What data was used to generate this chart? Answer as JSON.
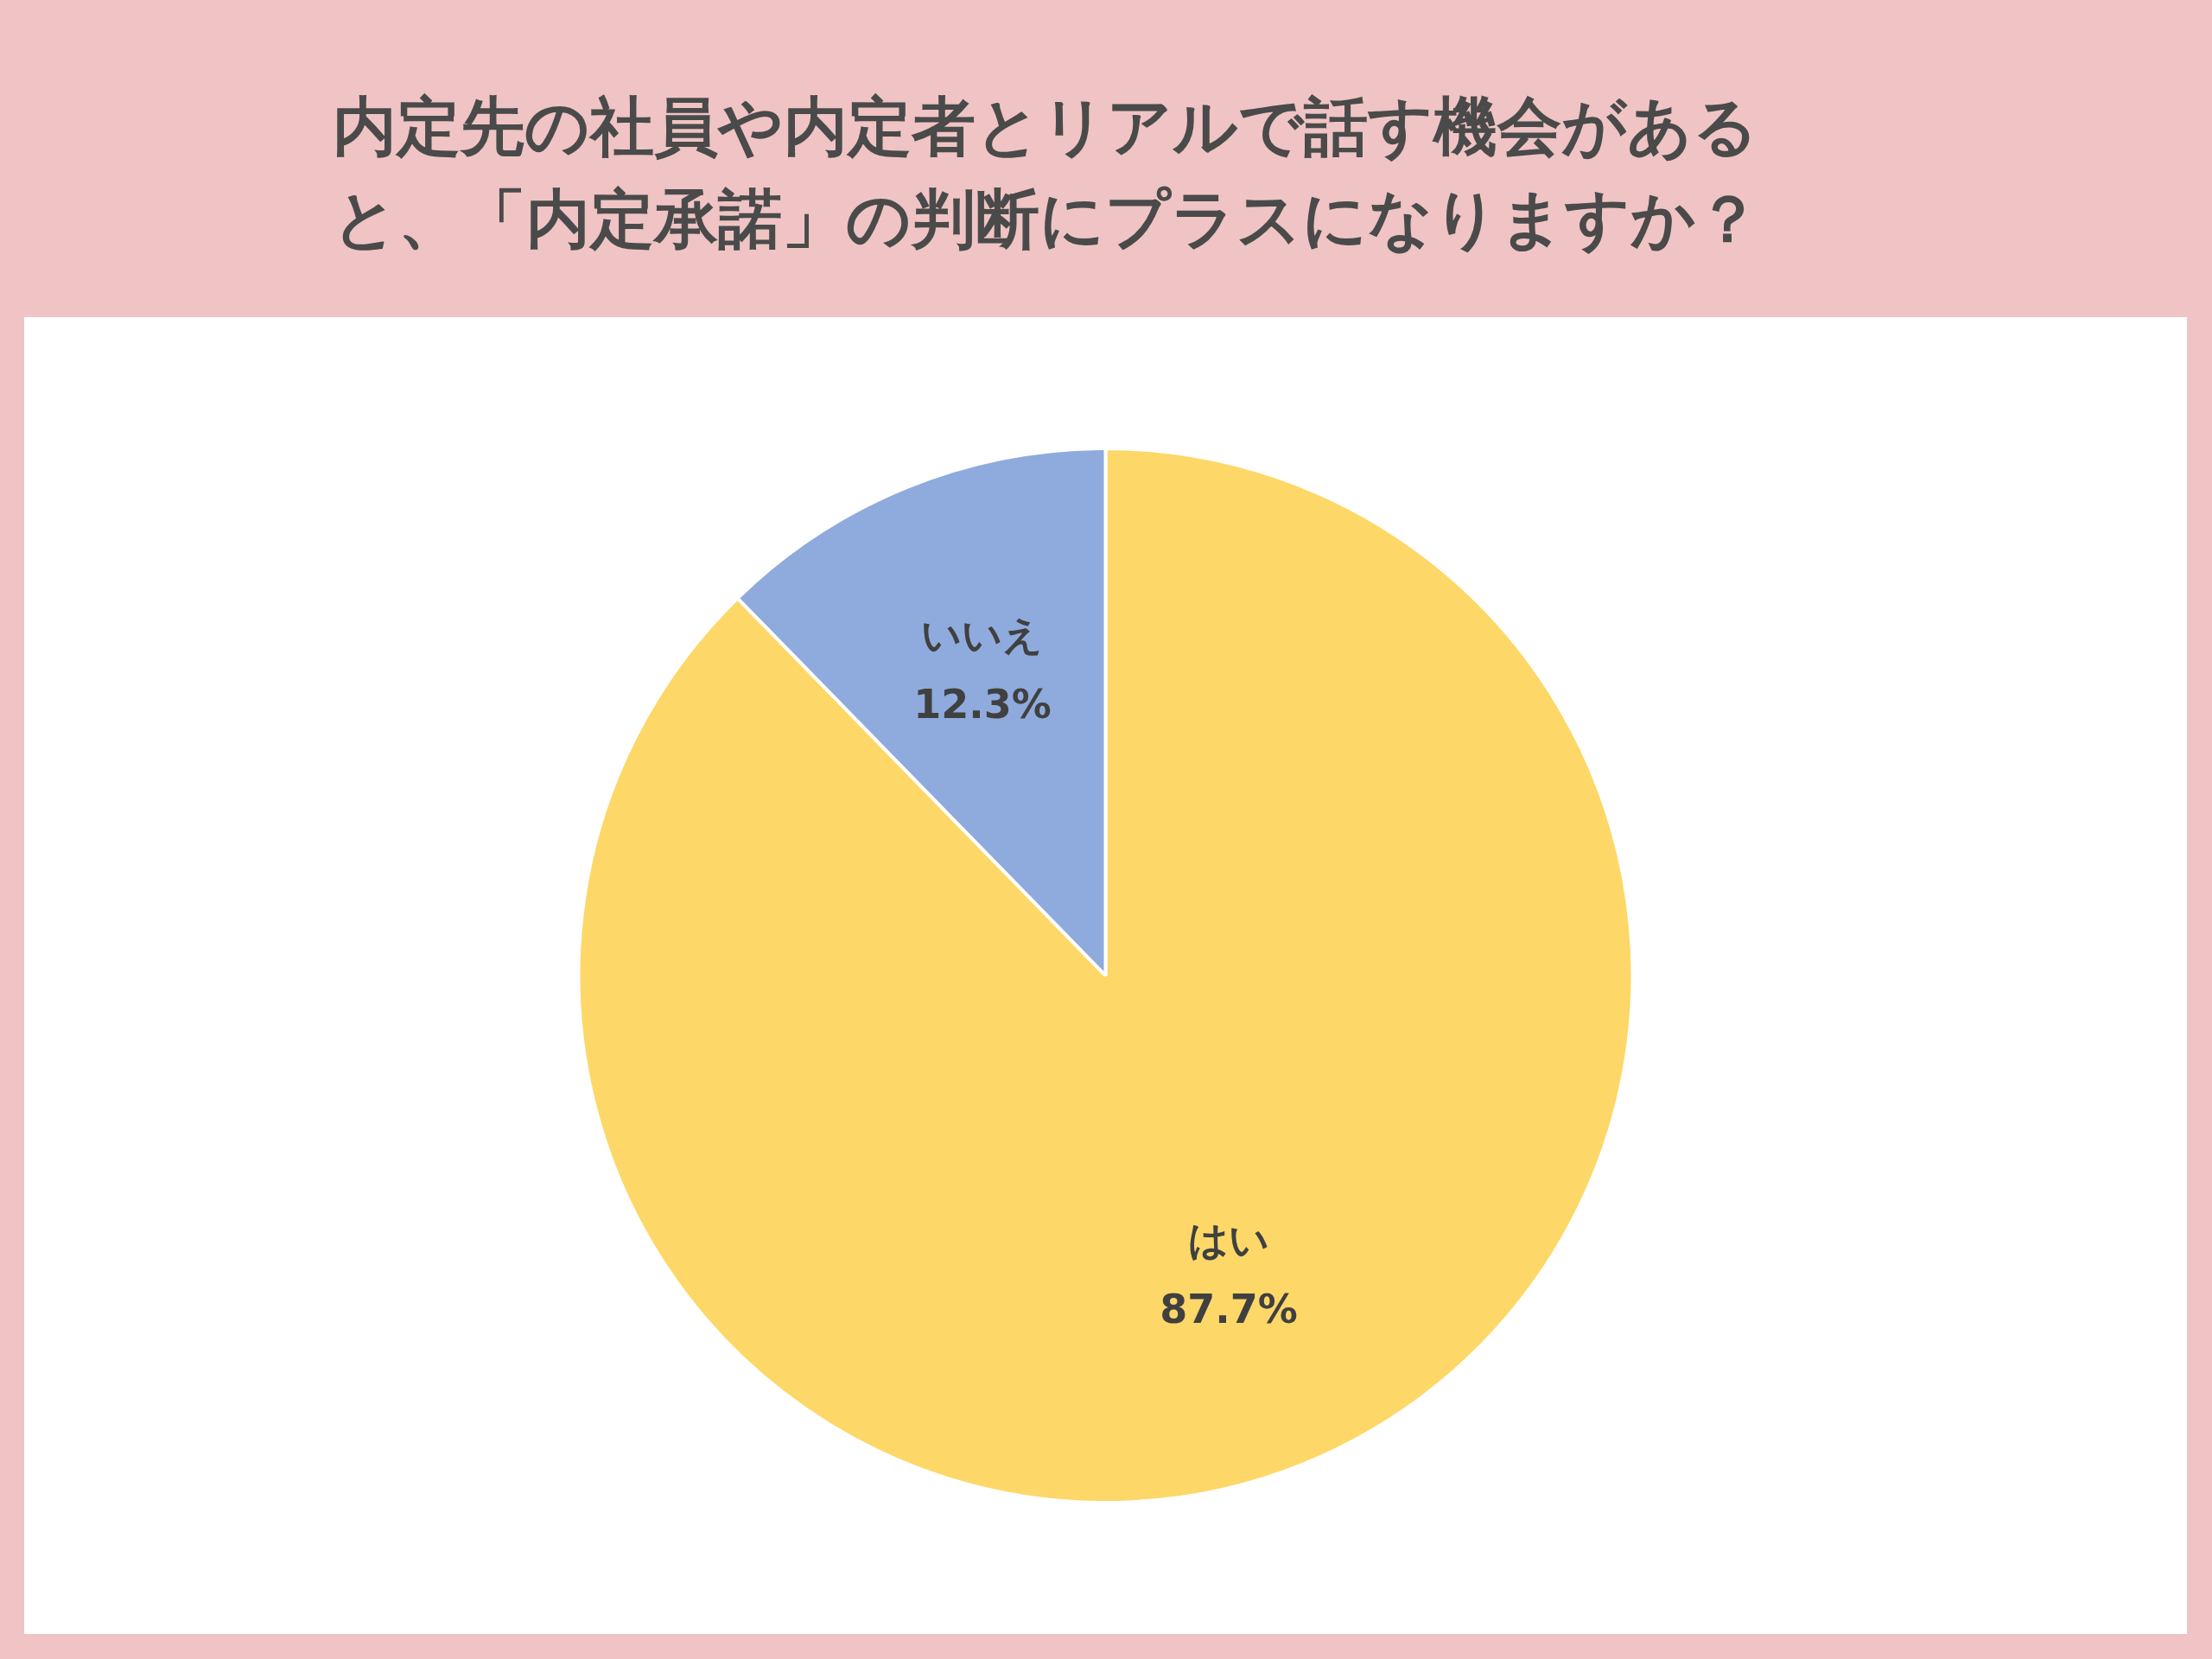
{
  "chart_data": {
    "type": "pie",
    "title": "内定先の社員や内定者とリアルで話す機会があると、「内定承諾」の判断にプラスになりますか？",
    "categories": [
      "はい",
      "いいえ"
    ],
    "values": [
      87.7,
      12.3
    ],
    "colors": [
      "#fdd868",
      "#8faadc"
    ],
    "value_labels": [
      "87.7%",
      "12.3%"
    ]
  }
}
